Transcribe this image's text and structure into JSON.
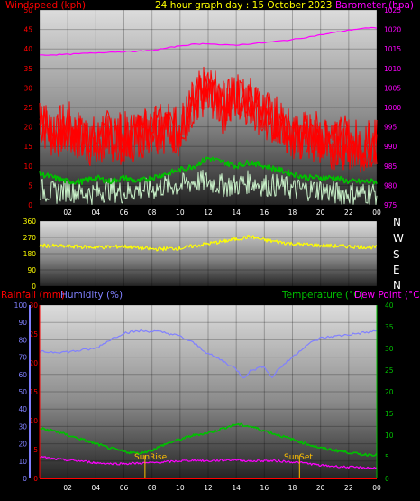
{
  "header": {
    "title": "24 hour graph day : 15 October 2023",
    "left_label": "Windspeed (kph)",
    "right_label": "Barometer (hpa)"
  },
  "direction_labels": [
    "N",
    "W",
    "S",
    "E",
    "N"
  ],
  "bottom_header": {
    "rainfall": "Rainfall (mm)",
    "humidity": "Humidity (%)",
    "temperature": "Temperature (°C)",
    "dewpoint": "Dew Point (°C)"
  },
  "markers": {
    "sunrise": "SunRise",
    "sunset": "SunSet"
  },
  "colors": {
    "wind_gust": "#ff0000",
    "wind_avg": "#00c000",
    "wind_latest": "#c8f0c8",
    "barometer": "#ff00ff",
    "direction": "#ffff00",
    "humidity": "#8080ff",
    "temperature": "#00c000",
    "dewpoint": "#ff00ff",
    "rainfall": "#ff0000",
    "markers": "#ffc000"
  },
  "chart_data": [
    {
      "type": "line",
      "name": "wind-and-barometer",
      "x_ticks": [
        "02",
        "04",
        "06",
        "08",
        "10",
        "12",
        "14",
        "16",
        "18",
        "20",
        "22",
        "00"
      ],
      "x_range_hours": [
        0,
        24
      ],
      "y_left_ticks": [
        0,
        5,
        10,
        15,
        20,
        25,
        30,
        35,
        40,
        45,
        50
      ],
      "y_left_range": [
        0,
        50
      ],
      "y_right_ticks": [
        975,
        980,
        985,
        990,
        995,
        1000,
        1005,
        1010,
        1015,
        1020,
        1025
      ],
      "y_right_range": [
        975,
        1025
      ],
      "grid": true,
      "series": [
        {
          "name": "Barometer (hpa)",
          "axis": "right",
          "x": [
            0,
            1,
            2,
            3,
            4,
            5,
            6,
            7,
            8,
            9,
            10,
            11,
            12,
            13,
            14,
            15,
            16,
            17,
            18,
            19,
            20,
            21,
            22,
            23,
            24
          ],
          "values": [
            1013.4,
            1013.5,
            1013.6,
            1013.8,
            1014.0,
            1014.2,
            1014.3,
            1014.4,
            1014.6,
            1015.2,
            1015.8,
            1016.2,
            1016.4,
            1016.0,
            1016.0,
            1016.3,
            1016.6,
            1017.0,
            1017.4,
            1018.0,
            1018.6,
            1019.2,
            1019.8,
            1020.3,
            1020.4
          ]
        },
        {
          "name": "Wind gust",
          "axis": "left",
          "x": [
            0,
            1,
            2,
            3,
            4,
            5,
            6,
            7,
            8,
            9,
            10,
            11,
            12,
            13,
            14,
            15,
            16,
            17,
            18,
            19,
            20,
            21,
            22,
            23,
            24
          ],
          "values": [
            22,
            18,
            20,
            17,
            16,
            18,
            17,
            18,
            20,
            20,
            19,
            26,
            30,
            25,
            28,
            27,
            23,
            21,
            17,
            18,
            17,
            16,
            16,
            15,
            16
          ]
        },
        {
          "name": "Wind average",
          "axis": "left",
          "x": [
            0,
            1,
            2,
            3,
            4,
            5,
            6,
            7,
            8,
            9,
            10,
            11,
            12,
            13,
            14,
            15,
            16,
            17,
            18,
            19,
            20,
            21,
            22,
            23,
            24
          ],
          "values": [
            8,
            7,
            6,
            6,
            7,
            6,
            7,
            6,
            7,
            8,
            9,
            10,
            12,
            11,
            10,
            11,
            10,
            9,
            8,
            7,
            7,
            7,
            6,
            6,
            6
          ]
        },
        {
          "name": "Wind latest",
          "axis": "left",
          "x": [
            0,
            1,
            2,
            3,
            4,
            5,
            6,
            7,
            8,
            9,
            10,
            11,
            12,
            13,
            14,
            15,
            16,
            17,
            18,
            19,
            20,
            21,
            22,
            23,
            24
          ],
          "values": [
            4,
            3,
            4,
            3,
            3,
            4,
            3,
            4,
            4,
            5,
            5,
            6,
            6,
            5,
            5,
            6,
            5,
            5,
            4,
            4,
            4,
            3,
            3,
            3,
            3
          ]
        }
      ]
    },
    {
      "type": "line",
      "name": "wind-direction",
      "x_range_hours": [
        0,
        24
      ],
      "y_ticks": [
        0,
        90,
        180,
        270,
        360
      ],
      "y_range": [
        0,
        360
      ],
      "grid": true,
      "series": [
        {
          "name": "Wind direction",
          "x": [
            0,
            2,
            4,
            6,
            8,
            10,
            12,
            14,
            15,
            16,
            18,
            20,
            22,
            24
          ],
          "values": [
            225,
            220,
            215,
            220,
            205,
            210,
            235,
            260,
            275,
            255,
            235,
            225,
            220,
            215
          ]
        }
      ]
    },
    {
      "type": "line",
      "name": "temperature-humidity",
      "x_ticks": [
        "02",
        "04",
        "06",
        "08",
        "10",
        "12",
        "14",
        "16",
        "18",
        "20",
        "22",
        "00"
      ],
      "x_range_hours": [
        0,
        24
      ],
      "y_humidity_ticks": [
        0,
        10,
        20,
        30,
        40,
        50,
        60,
        70,
        80,
        90,
        100
      ],
      "y_humidity_range": [
        0,
        100
      ],
      "y_rain_ticks": [
        0,
        5,
        10,
        15,
        20,
        25,
        30
      ],
      "y_rain_range": [
        0,
        30
      ],
      "y_temp_ticks": [
        0,
        5,
        10,
        15,
        20,
        25,
        30,
        35,
        40
      ],
      "y_temp_range": [
        0,
        40
      ],
      "grid": true,
      "series": [
        {
          "name": "Humidity (%)",
          "axis": "humidity",
          "x": [
            0,
            2,
            4,
            5,
            6,
            7,
            8,
            9,
            10,
            11,
            12,
            13,
            14,
            14.5,
            15,
            16,
            16.5,
            17,
            18,
            19,
            20,
            21,
            22,
            23,
            24
          ],
          "values": [
            73,
            73,
            75,
            80,
            84,
            85,
            85,
            84,
            82,
            78,
            72,
            68,
            63,
            58,
            62,
            65,
            58,
            63,
            70,
            77,
            81,
            82,
            83,
            84,
            85
          ]
        },
        {
          "name": "Temperature (°C)",
          "axis": "temp",
          "x": [
            0,
            1,
            2,
            3,
            4,
            5,
            6,
            7,
            8,
            9,
            10,
            11,
            12,
            13,
            14,
            15,
            16,
            17,
            18,
            19,
            20,
            21,
            22,
            23,
            24
          ],
          "values": [
            11.5,
            11.0,
            10.0,
            9.0,
            8.0,
            7.0,
            6.2,
            5.8,
            6.5,
            8.0,
            9.0,
            10.0,
            10.5,
            11.5,
            12.5,
            12.0,
            11.0,
            10.0,
            9.0,
            8.0,
            7.0,
            6.5,
            6.0,
            5.5,
            5.5
          ]
        },
        {
          "name": "Dew Point (°C)",
          "axis": "temp",
          "x": [
            0,
            1,
            2,
            3,
            4,
            5,
            6,
            7,
            8,
            9,
            10,
            11,
            12,
            13,
            14,
            15,
            16,
            17,
            18,
            19,
            20,
            21,
            22,
            23,
            24
          ],
          "values": [
            5.0,
            4.5,
            4.2,
            4.0,
            3.6,
            3.4,
            3.4,
            3.5,
            3.6,
            3.8,
            4.0,
            4.2,
            4.0,
            4.2,
            4.3,
            4.0,
            4.1,
            4.0,
            3.8,
            3.5,
            3.0,
            2.8,
            2.6,
            2.5,
            2.4
          ]
        },
        {
          "name": "Rainfall (mm)",
          "axis": "rain",
          "x": [
            0,
            24
          ],
          "values": [
            0,
            0
          ]
        }
      ],
      "sunrise_hour": 7.5,
      "sunset_hour": 18.5
    }
  ]
}
